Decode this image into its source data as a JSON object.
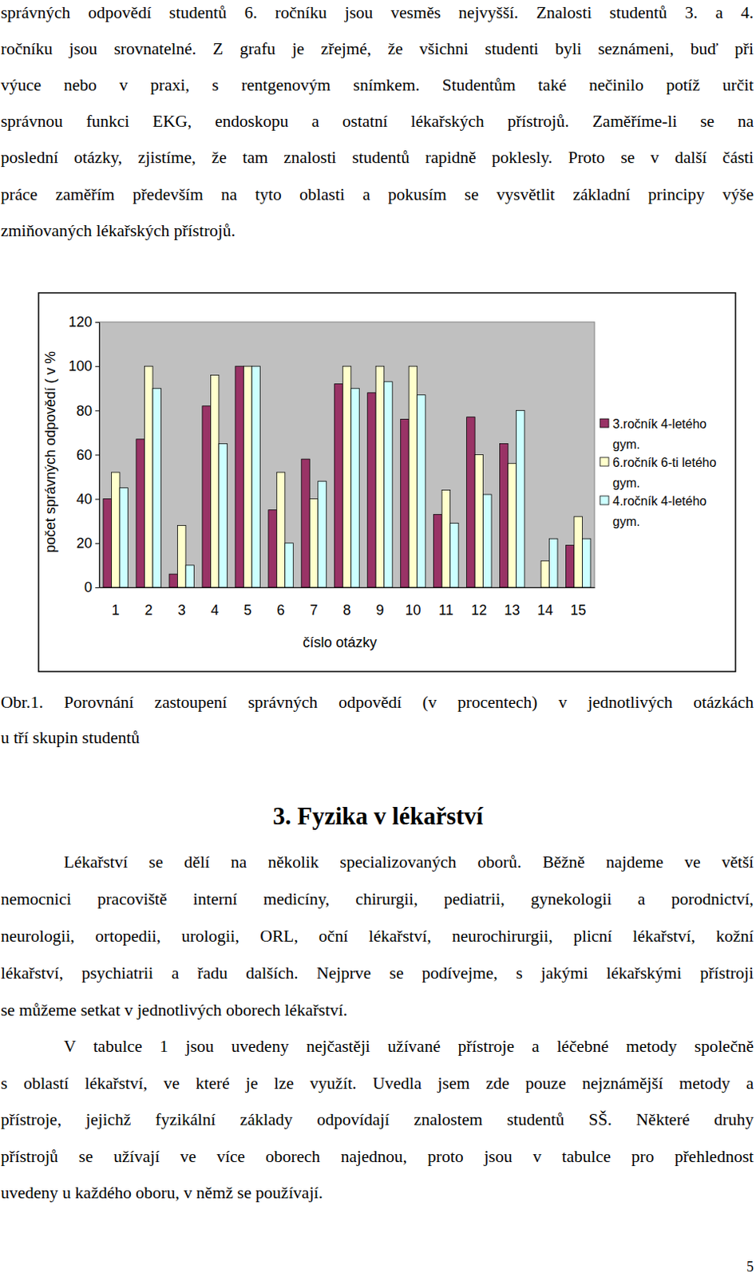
{
  "document": {
    "intro": {
      "lines": [
        "správných odpovědí studentů 6. ročníku jsou vesměs nejvyšší. Znalosti studentů 3. a 4.",
        "ročníku jsou srovnatelné. Z grafu je zřejmé, že všichni studenti byli seznámeni, buď při",
        "výuce nebo v praxi, s rentgenovým snímkem. Studentům také nečinilo potíž určit",
        "správnou funkci EKG, endoskopu a ostatní lékařských přístrojů. Zaměříme-li se na",
        "poslední otázky, zjistíme, že tam znalosti studentů rapidně poklesly. Proto se v další části",
        "práce zaměřím především na tyto oblasti a pokusím se vysvětlit základní principy výše",
        "zmiňovaných lékařských přístrojů."
      ]
    },
    "figure_caption": {
      "lines": [
        "Obr.1. Porovnání zastoupení správných odpovědí (v procentech) v jednotlivých otázkách",
        "u tří skupin studentů"
      ]
    },
    "heading": "3. Fyzika v lékařství",
    "paragraphs": [
      {
        "lines": [
          "Lékařství se dělí na několik specializovaných oborů. Běžně najdeme ve větší",
          "nemocnici pracoviště interní medicíny, chirurgii, pediatrii, gynekologii a porodnictví,",
          "neurologii, ortopedii, urologii, ORL, oční lékařství, neurochirurgii, plicní lékařství, kožní",
          "lékařství, psychiatrii a řadu dalších. Nejprve se podívejme, s jakými lékařskými přístroji",
          "se můžeme setkat v jednotlivých oborech lékařství."
        ]
      },
      {
        "lines": [
          "V tabulce 1 jsou uvedeny nejčastěji užívané přístroje a léčebné metody společně",
          "s oblastí lékařství, ve které je lze využít. Uvedla jsem zde pouze nejznámější metody a",
          "přístroje, jejichž fyzikální základy odpovídají znalostem studentů SŠ. Některé druhy",
          "přístrojů se užívají ve více oborech najednou, proto jsou v tabulce pro přehlednost",
          "uvedeny u každého oboru, v němž se používají."
        ]
      }
    ],
    "page_number": 5
  },
  "chart_data": {
    "type": "bar",
    "x_label": "číslo otázky",
    "y_label": "počet správných odpovědí ( v %",
    "categories": [
      "1",
      "2",
      "3",
      "4",
      "5",
      "6",
      "7",
      "8",
      "9",
      "10",
      "11",
      "12",
      "13",
      "14",
      "15"
    ],
    "series": [
      {
        "name": "3.ročník 4-letého gym.",
        "color": "#993366",
        "values": [
          40,
          67,
          6,
          82,
          100,
          35,
          58,
          92,
          88,
          76,
          33,
          77,
          65,
          0,
          19
        ]
      },
      {
        "name": "6.ročník 6-ti letého gym.",
        "color": "#ffffcc",
        "values": [
          52,
          100,
          28,
          96,
          100,
          52,
          40,
          100,
          100,
          100,
          44,
          60,
          56,
          12,
          32
        ]
      },
      {
        "name": "4.ročník 4-letého gym.",
        "color": "#ccffff",
        "values": [
          45,
          90,
          10,
          65,
          100,
          20,
          48,
          90,
          93,
          87,
          29,
          42,
          80,
          22,
          22
        ]
      }
    ],
    "ylim": [
      0,
      120
    ],
    "yticks": [
      0,
      20,
      40,
      60,
      80,
      100,
      120
    ],
    "grid": false,
    "legend": "right"
  }
}
